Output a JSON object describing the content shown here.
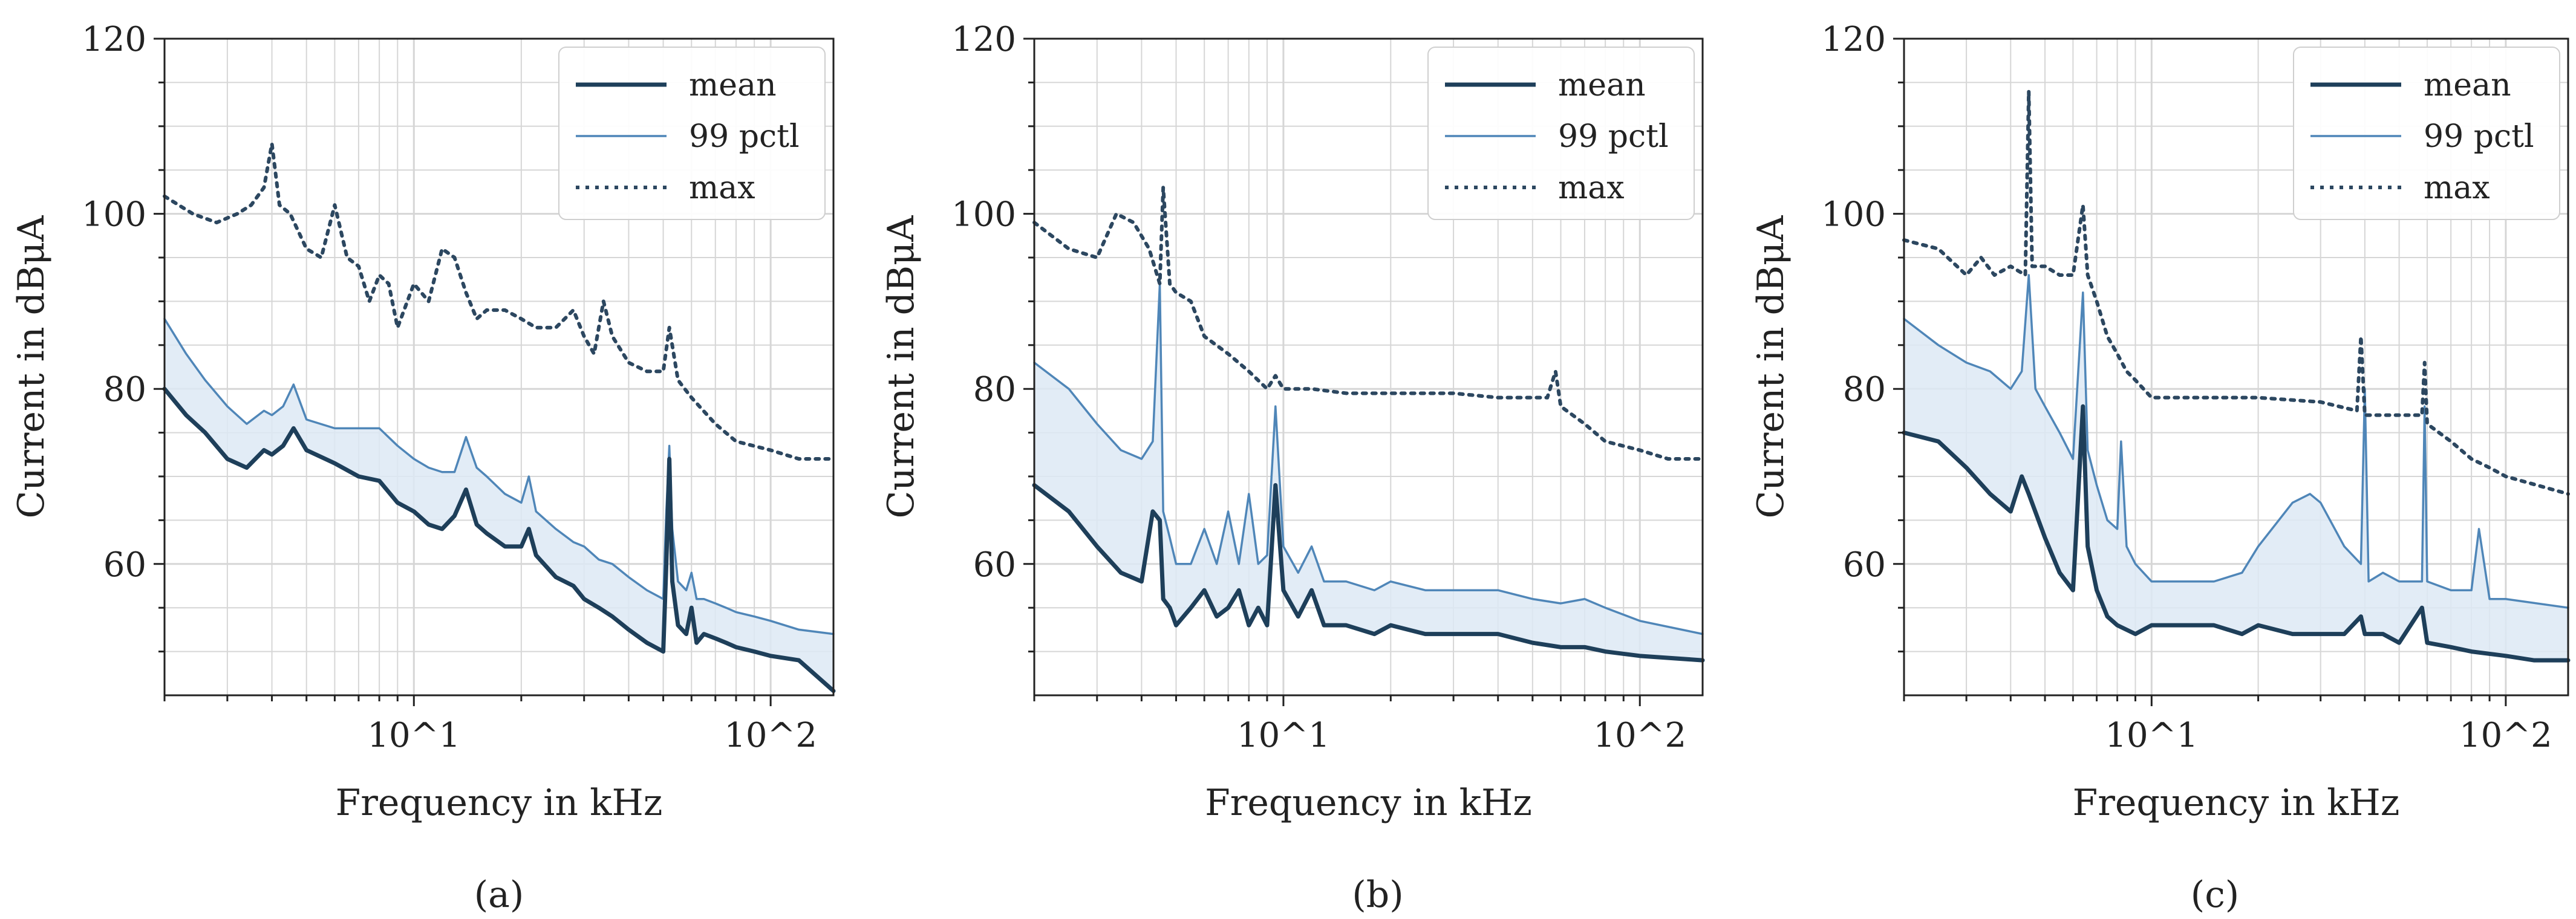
{
  "figure_captions": [
    "(a)",
    "(b)",
    "(c)"
  ],
  "colors": {
    "mean": "#1e3f5a",
    "pctl": "#4f86b8",
    "max": "#2c4760",
    "band": "#dde9f4",
    "grid": "#d6d6d6",
    "axis": "#222222"
  },
  "chart_data": [
    {
      "type": "line",
      "panel": "(a)",
      "xlabel": "Frequency in kHz",
      "ylabel": "Current in dBμA",
      "xscale": "log",
      "xlim": [
        2,
        150
      ],
      "ylim": [
        45,
        120
      ],
      "yticks": [
        60,
        80,
        100,
        120
      ],
      "xticks": [
        10,
        100
      ],
      "xtick_labels": [
        "10^1",
        "10^2"
      ],
      "legend": {
        "position": "top-right",
        "entries": [
          "mean",
          "99 pctl",
          "max"
        ]
      },
      "series": [
        {
          "name": "mean",
          "style": "solid-thick",
          "x": [
            2,
            2.3,
            2.6,
            3,
            3.4,
            3.8,
            4,
            4.3,
            4.6,
            5,
            6,
            7,
            8,
            9,
            10,
            11,
            12,
            13,
            14,
            15,
            16,
            18,
            20,
            21,
            22,
            25,
            28,
            30,
            33,
            36,
            40,
            45,
            50,
            51,
            52,
            53,
            55,
            58,
            60,
            62,
            65,
            70,
            75,
            80,
            90,
            100,
            120,
            150
          ],
          "y": [
            80,
            77,
            75,
            72,
            71,
            73,
            72.5,
            73.5,
            75.5,
            73,
            71.5,
            70,
            69.5,
            67,
            66,
            64.5,
            64,
            65.5,
            68.5,
            64.5,
            63.5,
            62,
            62,
            64,
            61,
            58.5,
            57.5,
            56,
            55,
            54,
            52.5,
            51,
            50,
            60,
            72,
            58,
            53,
            52,
            55,
            51,
            52,
            51.5,
            51,
            50.5,
            50,
            49.5,
            49,
            45.5
          ]
        },
        {
          "name": "99 pctl",
          "style": "solid-thin",
          "x": [
            2,
            2.3,
            2.6,
            3,
            3.4,
            3.8,
            4,
            4.3,
            4.6,
            5,
            6,
            7,
            8,
            9,
            10,
            11,
            12,
            13,
            14,
            15,
            16,
            18,
            20,
            21,
            22,
            25,
            28,
            30,
            33,
            36,
            40,
            45,
            50,
            51,
            52,
            53,
            55,
            58,
            60,
            62,
            65,
            70,
            75,
            80,
            90,
            100,
            120,
            150
          ],
          "y": [
            88,
            84,
            81,
            78,
            76,
            77.5,
            77,
            78,
            80.5,
            76.5,
            75.5,
            75.5,
            75.5,
            73.5,
            72,
            71,
            70.5,
            70.5,
            74.5,
            71,
            70,
            68,
            67,
            70,
            66,
            64,
            62.5,
            62,
            60.5,
            60,
            58.5,
            57,
            56,
            66,
            73.5,
            64,
            58,
            57,
            59,
            56,
            56,
            55.5,
            55,
            54.5,
            54,
            53.5,
            52.5,
            52
          ]
        },
        {
          "name": "max",
          "style": "dotted",
          "x": [
            2,
            2.4,
            2.8,
            3.2,
            3.5,
            3.8,
            4,
            4.2,
            4.5,
            5,
            5.5,
            6,
            6.5,
            7,
            7.5,
            8,
            8.5,
            9,
            10,
            11,
            12,
            13,
            14,
            15,
            16,
            18,
            20,
            22,
            25,
            28,
            30,
            32,
            34,
            36,
            40,
            45,
            50,
            52,
            55,
            60,
            70,
            80,
            100,
            120,
            150
          ],
          "y": [
            102,
            100,
            99,
            100,
            101,
            103,
            108,
            101,
            100,
            96,
            95,
            101,
            95,
            94,
            90,
            93,
            92,
            87,
            92,
            90,
            96,
            95,
            91,
            88,
            89,
            89,
            88,
            87,
            87,
            89,
            86,
            84,
            90,
            86,
            83,
            82,
            82,
            87,
            81,
            79,
            76,
            74,
            73,
            72,
            72
          ]
        }
      ]
    },
    {
      "type": "line",
      "panel": "(b)",
      "xlabel": "Frequency in kHz",
      "ylabel": "Current in dBμA",
      "xscale": "log",
      "xlim": [
        2,
        150
      ],
      "ylim": [
        45,
        120
      ],
      "yticks": [
        60,
        80,
        100,
        120
      ],
      "xticks": [
        10,
        100
      ],
      "xtick_labels": [
        "10^1",
        "10^2"
      ],
      "legend": {
        "position": "top-right",
        "entries": [
          "mean",
          "99 pctl",
          "max"
        ]
      },
      "series": [
        {
          "name": "mean",
          "style": "solid-thick",
          "x": [
            2,
            2.5,
            3,
            3.5,
            4,
            4.3,
            4.5,
            4.6,
            4.8,
            5,
            5.5,
            6,
            6.5,
            7,
            7.5,
            8,
            8.5,
            9,
            9.5,
            10,
            11,
            12,
            13,
            15,
            18,
            20,
            25,
            30,
            40,
            50,
            60,
            70,
            80,
            100,
            150
          ],
          "y": [
            69,
            66,
            62,
            59,
            58,
            66,
            65,
            56,
            55,
            53,
            55,
            57,
            54,
            55,
            57,
            53,
            55,
            53,
            69,
            57,
            54,
            57,
            53,
            53,
            52,
            53,
            52,
            52,
            52,
            51,
            50.5,
            50.5,
            50,
            49.5,
            49
          ]
        },
        {
          "name": "99 pctl",
          "style": "solid-thin",
          "x": [
            2,
            2.5,
            3,
            3.5,
            4,
            4.3,
            4.5,
            4.6,
            4.8,
            5,
            5.5,
            6,
            6.5,
            7,
            7.5,
            8,
            8.5,
            9,
            9.5,
            10,
            11,
            12,
            13,
            15,
            18,
            20,
            25,
            30,
            40,
            50,
            60,
            70,
            80,
            100,
            150
          ],
          "y": [
            83,
            80,
            76,
            73,
            72,
            74,
            92,
            66,
            63,
            60,
            60,
            64,
            60,
            66,
            60,
            68,
            60,
            61,
            78,
            62,
            59,
            62,
            58,
            58,
            57,
            58,
            57,
            57,
            57,
            56,
            55.5,
            56,
            55,
            53.5,
            52
          ]
        },
        {
          "name": "max",
          "style": "dotted",
          "x": [
            2,
            2.5,
            3,
            3.4,
            3.8,
            4.2,
            4.5,
            4.6,
            4.8,
            5,
            5.5,
            6,
            7,
            8,
            9,
            9.5,
            10,
            12,
            15,
            20,
            30,
            40,
            50,
            55,
            58,
            60,
            70,
            80,
            100,
            120,
            150
          ],
          "y": [
            99,
            96,
            95,
            100,
            99,
            96,
            92,
            103,
            92,
            91,
            90,
            86,
            84,
            82,
            80,
            81.5,
            80,
            80,
            79.5,
            79.5,
            79.5,
            79,
            79,
            79,
            82,
            78,
            76,
            74,
            73,
            72,
            72
          ]
        }
      ]
    },
    {
      "type": "line",
      "panel": "(c)",
      "xlabel": "Frequency in kHz",
      "ylabel": "Current in dBμA",
      "xscale": "log",
      "xlim": [
        2,
        150
      ],
      "ylim": [
        45,
        120
      ],
      "yticks": [
        60,
        80,
        100,
        120
      ],
      "xticks": [
        10,
        100
      ],
      "xtick_labels": [
        "10^1",
        "10^2"
      ],
      "legend": {
        "position": "top-right",
        "entries": [
          "mean",
          "99 pctl",
          "max"
        ]
      },
      "series": [
        {
          "name": "mean",
          "style": "solid-thick",
          "x": [
            2,
            2.5,
            3,
            3.5,
            4,
            4.3,
            4.5,
            5,
            5.5,
            6,
            6.4,
            6.6,
            7,
            7.5,
            8,
            9,
            10,
            12,
            15,
            18,
            20,
            25,
            30,
            35,
            39,
            40,
            45,
            50,
            58,
            60,
            70,
            80,
            100,
            120,
            150
          ],
          "y": [
            75,
            74,
            71,
            68,
            66,
            70,
            68,
            63,
            59,
            57,
            78,
            62,
            57,
            54,
            53,
            52,
            53,
            53,
            53,
            52,
            53,
            52,
            52,
            52,
            54,
            52,
            52,
            51,
            55,
            51,
            50.5,
            50,
            49.5,
            49,
            49
          ]
        },
        {
          "name": "99 pctl",
          "style": "solid-thin",
          "x": [
            2,
            2.5,
            3,
            3.5,
            4,
            4.3,
            4.5,
            4.7,
            5,
            5.5,
            6,
            6.4,
            6.6,
            7,
            7.5,
            8,
            8.2,
            8.5,
            9,
            10,
            12,
            15,
            18,
            20,
            25,
            28,
            30,
            35,
            39,
            40,
            41,
            45,
            50,
            58,
            59,
            60,
            70,
            80,
            84,
            90,
            100,
            150
          ],
          "y": [
            88,
            85,
            83,
            82,
            80,
            82,
            93,
            80,
            78,
            75,
            72,
            91,
            73,
            69,
            65,
            64,
            74,
            62,
            60,
            58,
            58,
            58,
            59,
            62,
            67,
            68,
            67,
            62,
            60,
            80,
            58,
            59,
            58,
            58,
            78,
            58,
            57,
            57,
            64,
            56,
            56,
            55
          ]
        },
        {
          "name": "max",
          "style": "dotted",
          "x": [
            2,
            2.5,
            3,
            3.3,
            3.6,
            4,
            4.4,
            4.5,
            4.6,
            5,
            5.5,
            6,
            6.4,
            6.6,
            7,
            7.5,
            8,
            8.5,
            9,
            10,
            12,
            15,
            20,
            30,
            38,
            39,
            40,
            45,
            50,
            58,
            59,
            60,
            70,
            80,
            90,
            100,
            150
          ],
          "y": [
            97,
            96,
            93,
            95,
            93,
            94,
            93,
            114,
            94,
            94,
            93,
            93,
            101,
            93,
            90,
            86,
            84,
            82,
            81,
            79,
            79,
            79,
            79,
            78.5,
            77.5,
            86,
            77,
            77,
            77,
            77,
            83,
            76,
            74,
            72,
            71,
            70,
            68
          ]
        }
      ]
    }
  ]
}
